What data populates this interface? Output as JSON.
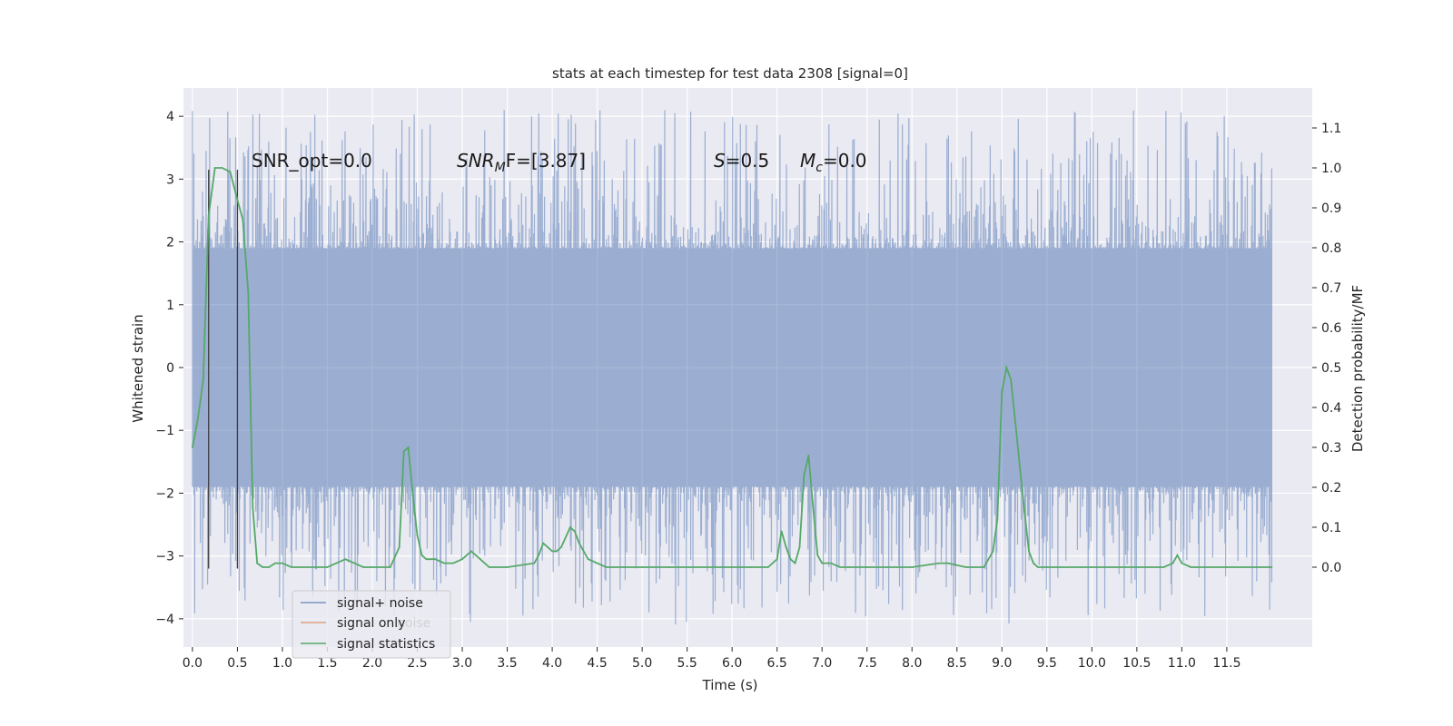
{
  "chart_data": {
    "type": "line",
    "title": "stats at each timestep for test data 2308 [signal=0]",
    "xlabel": "Time (s)",
    "ylabel": "Whitened strain",
    "ylabel_right": "Detection probability/MF",
    "xlim": [
      -0.1,
      12.45
    ],
    "ylim": [
      -4.45,
      4.45
    ],
    "ylim_right": [
      -0.2,
      1.2
    ],
    "x_ticks": [
      0.0,
      0.5,
      1.0,
      1.5,
      2.0,
      2.5,
      3.0,
      3.5,
      4.0,
      4.5,
      5.0,
      5.5,
      6.0,
      6.5,
      7.0,
      7.5,
      8.0,
      8.5,
      9.0,
      9.5,
      10.0,
      10.5,
      11.0,
      11.5
    ],
    "x_tick_labels": [
      "0.0",
      "0.5",
      "1.0",
      "1.5",
      "2.0",
      "2.5",
      "3.0",
      "3.5",
      "4.0",
      "4.5",
      "5.0",
      "5.5",
      "6.0",
      "6.5",
      "7.0",
      "7.5",
      "8.0",
      "8.5",
      "9.0",
      "9.5",
      "10.0",
      "10.5",
      "11.0",
      "11.5"
    ],
    "y_ticks": [
      -4,
      -3,
      -2,
      -1,
      0,
      1,
      2,
      3,
      4
    ],
    "y_tick_labels": [
      "−4",
      "−3",
      "−2",
      "−1",
      "0",
      "1",
      "2",
      "3",
      "4"
    ],
    "y_right_ticks": [
      0.0,
      0.1,
      0.2,
      0.3,
      0.4,
      0.5,
      0.6,
      0.7,
      0.8,
      0.9,
      1.0,
      1.1
    ],
    "y_right_tick_labels": [
      "0.0",
      "0.1",
      "0.2",
      "0.3",
      "0.4",
      "0.5",
      "0.6",
      "0.7",
      "0.8",
      "0.9",
      "1.0",
      "1.1"
    ],
    "grid": true,
    "legend_position": "lower-left",
    "colors": {
      "background": "#eaeaf2",
      "noise": "#4c72b0",
      "signal": "#dd8452",
      "stats": "#55a868",
      "marker": "#3a3a3a"
    },
    "series": [
      {
        "name": "signal+ noise",
        "kind": "noisy-strain",
        "x_range": [
          0.0,
          12.0
        ],
        "envelope_typical": 1.9,
        "envelope_max": 4.1,
        "envelope_min": -4.1
      },
      {
        "name": "signal only",
        "kind": "line",
        "x": [],
        "y": []
      },
      {
        "name": "signal statistics",
        "kind": "line",
        "axis": "right",
        "x": [
          0.0,
          0.06,
          0.12,
          0.18,
          0.25,
          0.33,
          0.42,
          0.5,
          0.56,
          0.62,
          0.67,
          0.72,
          0.78,
          0.85,
          0.92,
          1.0,
          1.1,
          1.2,
          1.5,
          1.6,
          1.7,
          1.8,
          1.9,
          2.0,
          2.2,
          2.3,
          2.35,
          2.4,
          2.45,
          2.5,
          2.55,
          2.6,
          2.7,
          2.8,
          2.9,
          3.0,
          3.1,
          3.15,
          3.2,
          3.3,
          3.4,
          3.5,
          3.8,
          3.85,
          3.9,
          4.0,
          4.05,
          4.1,
          4.2,
          4.25,
          4.3,
          4.35,
          4.4,
          4.5,
          4.6,
          4.8,
          5.0,
          5.3,
          6.0,
          6.1,
          6.2,
          6.4,
          6.5,
          6.55,
          6.6,
          6.65,
          6.7,
          6.75,
          6.8,
          6.85,
          6.9,
          6.95,
          7.0,
          7.05,
          7.1,
          7.2,
          7.3,
          7.5,
          8.0,
          8.3,
          8.4,
          8.6,
          8.8,
          8.9,
          8.95,
          9.0,
          9.05,
          9.1,
          9.15,
          9.2,
          9.25,
          9.3,
          9.35,
          9.4,
          9.5,
          10.0,
          10.8,
          10.9,
          10.95,
          11.0,
          11.1,
          11.5,
          11.7,
          12.0
        ],
        "y": [
          0.3,
          0.37,
          0.47,
          0.88,
          1.0,
          1.0,
          0.99,
          0.92,
          0.87,
          0.69,
          0.15,
          0.01,
          0.0,
          0.0,
          0.01,
          0.01,
          0.0,
          0.0,
          0.0,
          0.01,
          0.02,
          0.01,
          0.0,
          0.0,
          0.0,
          0.05,
          0.29,
          0.3,
          0.18,
          0.08,
          0.03,
          0.02,
          0.02,
          0.01,
          0.01,
          0.02,
          0.04,
          0.03,
          0.02,
          0.0,
          0.0,
          0.0,
          0.01,
          0.03,
          0.06,
          0.04,
          0.04,
          0.05,
          0.1,
          0.09,
          0.06,
          0.04,
          0.02,
          0.01,
          0.0,
          0.0,
          0.0,
          0.0,
          0.0,
          0.0,
          0.0,
          0.0,
          0.02,
          0.09,
          0.05,
          0.02,
          0.01,
          0.05,
          0.23,
          0.28,
          0.15,
          0.03,
          0.01,
          0.01,
          0.01,
          0.0,
          0.0,
          0.0,
          0.0,
          0.01,
          0.01,
          0.0,
          0.0,
          0.04,
          0.12,
          0.44,
          0.5,
          0.47,
          0.36,
          0.25,
          0.14,
          0.04,
          0.01,
          0.0,
          0.0,
          0.0,
          0.0,
          0.01,
          0.03,
          0.01,
          0.0,
          0.0,
          0.0,
          0.0
        ]
      }
    ],
    "vertical_markers": [
      0.18,
      0.5
    ],
    "annotations": [
      {
        "text": "SNR_opt=0.0",
        "kind": "plain",
        "x": 0.2,
        "y": 3.3
      },
      {
        "text": "SNR_MF=[3.87]",
        "kind": "snr-mf",
        "x": 2.6,
        "y": 3.3
      },
      {
        "text": "S=0.5",
        "kind": "s",
        "x": 5.6,
        "y": 3.3
      },
      {
        "text": "M_c=0.0",
        "kind": "mc",
        "x": 6.6,
        "y": 3.3
      }
    ],
    "legend_overlap_text": "noise"
  },
  "annotation_parts": {
    "snr_opt": "SNR_opt=0.0",
    "snr_mf_main": "SNR",
    "snr_mf_sub": "M",
    "snr_mf_rest": "F=[3.87]",
    "s_symbol": "S",
    "s_rest": "=0.5",
    "mc_symbol": "M",
    "mc_sub": "c",
    "mc_rest": "=0.0"
  }
}
